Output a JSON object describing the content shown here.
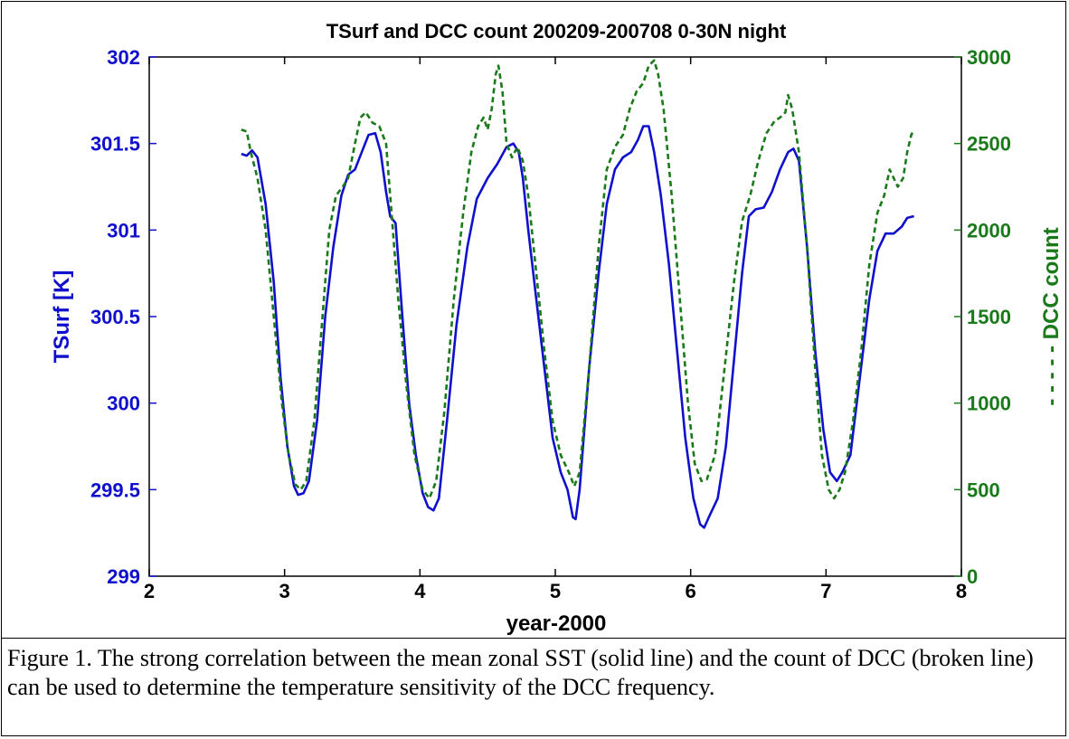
{
  "chart_data": {
    "type": "line",
    "title": "TSurf and DCC count 200209-200708 0-30N night",
    "xlabel": "year-2000",
    "ylabel_left": "TSurf [K]",
    "ylabel_right": "- - - - - DCC count",
    "xlim": [
      2,
      8
    ],
    "ylim_left": [
      299,
      302
    ],
    "ylim_right": [
      0,
      3000
    ],
    "x_ticks": [
      "2",
      "3",
      "4",
      "5",
      "6",
      "7",
      "8"
    ],
    "y_ticks_left": [
      "299",
      "299.5",
      "300",
      "300.5",
      "301",
      "301.5",
      "302"
    ],
    "y_ticks_right": [
      "0",
      "500",
      "1000",
      "1500",
      "2000",
      "2500",
      "3000"
    ],
    "grid": false,
    "series": [
      {
        "name": "TSurf",
        "axis": "left",
        "color": "#1010cc",
        "style": "solid",
        "x": [
          2.68,
          2.72,
          2.76,
          2.8,
          2.86,
          2.92,
          2.97,
          3.02,
          3.07,
          3.1,
          3.14,
          3.18,
          3.24,
          3.3,
          3.36,
          3.42,
          3.47,
          3.52,
          3.57,
          3.62,
          3.67,
          3.71,
          3.75,
          3.78,
          3.8,
          3.82,
          3.87,
          3.92,
          3.97,
          4.02,
          4.06,
          4.1,
          4.14,
          4.2,
          4.27,
          4.35,
          4.42,
          4.5,
          4.57,
          4.64,
          4.69,
          4.73,
          4.76,
          4.8,
          4.86,
          4.92,
          4.98,
          5.04,
          5.09,
          5.13,
          5.15,
          5.18,
          5.25,
          5.32,
          5.38,
          5.44,
          5.5,
          5.56,
          5.61,
          5.65,
          5.69,
          5.73,
          5.78,
          5.84,
          5.9,
          5.96,
          6.02,
          6.07,
          6.1,
          6.14,
          6.2,
          6.26,
          6.32,
          6.38,
          6.43,
          6.48,
          6.54,
          6.6,
          6.66,
          6.72,
          6.76,
          6.8,
          6.86,
          6.92,
          6.98,
          7.03,
          7.08,
          7.12,
          7.18,
          7.25,
          7.32,
          7.38,
          7.44,
          7.5,
          7.56,
          7.6,
          7.65
        ],
        "y": [
          301.44,
          301.43,
          301.46,
          301.42,
          301.15,
          300.7,
          300.15,
          299.75,
          299.52,
          299.47,
          299.48,
          299.55,
          299.9,
          300.5,
          300.9,
          301.2,
          301.32,
          301.35,
          301.45,
          301.55,
          301.56,
          301.45,
          301.22,
          301.08,
          301.06,
          301.04,
          300.5,
          300.0,
          299.7,
          299.48,
          299.4,
          299.38,
          299.45,
          299.9,
          300.45,
          300.9,
          301.18,
          301.3,
          301.38,
          301.48,
          301.5,
          301.45,
          301.3,
          301.0,
          300.6,
          300.2,
          299.8,
          299.6,
          299.5,
          299.34,
          299.33,
          299.5,
          300.2,
          300.75,
          301.15,
          301.35,
          301.42,
          301.45,
          301.52,
          301.6,
          301.6,
          301.45,
          301.2,
          300.8,
          300.3,
          299.8,
          299.45,
          299.3,
          299.28,
          299.35,
          299.45,
          299.75,
          300.25,
          300.75,
          301.08,
          301.12,
          301.13,
          301.22,
          301.35,
          301.45,
          301.47,
          301.4,
          300.9,
          300.3,
          299.85,
          299.6,
          299.55,
          299.6,
          299.7,
          300.15,
          300.6,
          300.88,
          300.98,
          300.98,
          301.02,
          301.07,
          301.08
        ]
      },
      {
        "name": "DCC count",
        "axis": "right",
        "color": "#1a7a1a",
        "style": "dashed",
        "x": [
          2.68,
          2.72,
          2.75,
          2.8,
          2.86,
          2.92,
          2.98,
          3.03,
          3.08,
          3.12,
          3.16,
          3.22,
          3.28,
          3.33,
          3.38,
          3.43,
          3.47,
          3.52,
          3.56,
          3.6,
          3.65,
          3.7,
          3.75,
          3.79,
          3.84,
          3.9,
          3.96,
          4.02,
          4.07,
          4.12,
          4.18,
          4.25,
          4.32,
          4.38,
          4.43,
          4.47,
          4.5,
          4.53,
          4.56,
          4.58,
          4.61,
          4.64,
          4.68,
          4.72,
          4.76,
          4.8,
          4.86,
          4.92,
          4.98,
          5.04,
          5.1,
          5.14,
          5.18,
          5.25,
          5.32,
          5.38,
          5.44,
          5.5,
          5.55,
          5.6,
          5.65,
          5.69,
          5.73,
          5.76,
          5.8,
          5.86,
          5.92,
          5.98,
          6.03,
          6.08,
          6.12,
          6.18,
          6.25,
          6.32,
          6.38,
          6.44,
          6.5,
          6.56,
          6.62,
          6.66,
          6.7,
          6.72,
          6.75,
          6.8,
          6.86,
          6.92,
          6.97,
          7.02,
          7.06,
          7.1,
          7.14,
          7.2,
          7.26,
          7.32,
          7.38,
          7.43,
          7.47,
          7.5,
          7.53,
          7.57,
          7.6,
          7.63,
          7.65
        ],
        "y": [
          2580,
          2570,
          2450,
          2300,
          2000,
          1500,
          1000,
          700,
          530,
          500,
          550,
          900,
          1500,
          2000,
          2200,
          2250,
          2300,
          2500,
          2650,
          2680,
          2620,
          2600,
          2500,
          2100,
          1600,
          1100,
          700,
          500,
          450,
          550,
          950,
          1600,
          2100,
          2450,
          2600,
          2650,
          2580,
          2700,
          2900,
          2950,
          2800,
          2500,
          2420,
          2480,
          2400,
          2200,
          1750,
          1300,
          900,
          700,
          600,
          520,
          600,
          1200,
          1900,
          2350,
          2480,
          2550,
          2700,
          2800,
          2850,
          2950,
          2980,
          2900,
          2700,
          2200,
          1600,
          1000,
          650,
          550,
          560,
          700,
          1200,
          1700,
          2050,
          2200,
          2400,
          2560,
          2630,
          2650,
          2680,
          2780,
          2700,
          2450,
          1900,
          1200,
          700,
          500,
          450,
          500,
          600,
          900,
          1300,
          1800,
          2100,
          2200,
          2350,
          2300,
          2250,
          2300,
          2450,
          2550,
          2580
        ]
      }
    ]
  },
  "caption": "Figure 1. The strong correlation between the mean zonal SST (solid line) and the count of DCC (broken line) can be used to determine the temperature sensitivity of the DCC frequency."
}
